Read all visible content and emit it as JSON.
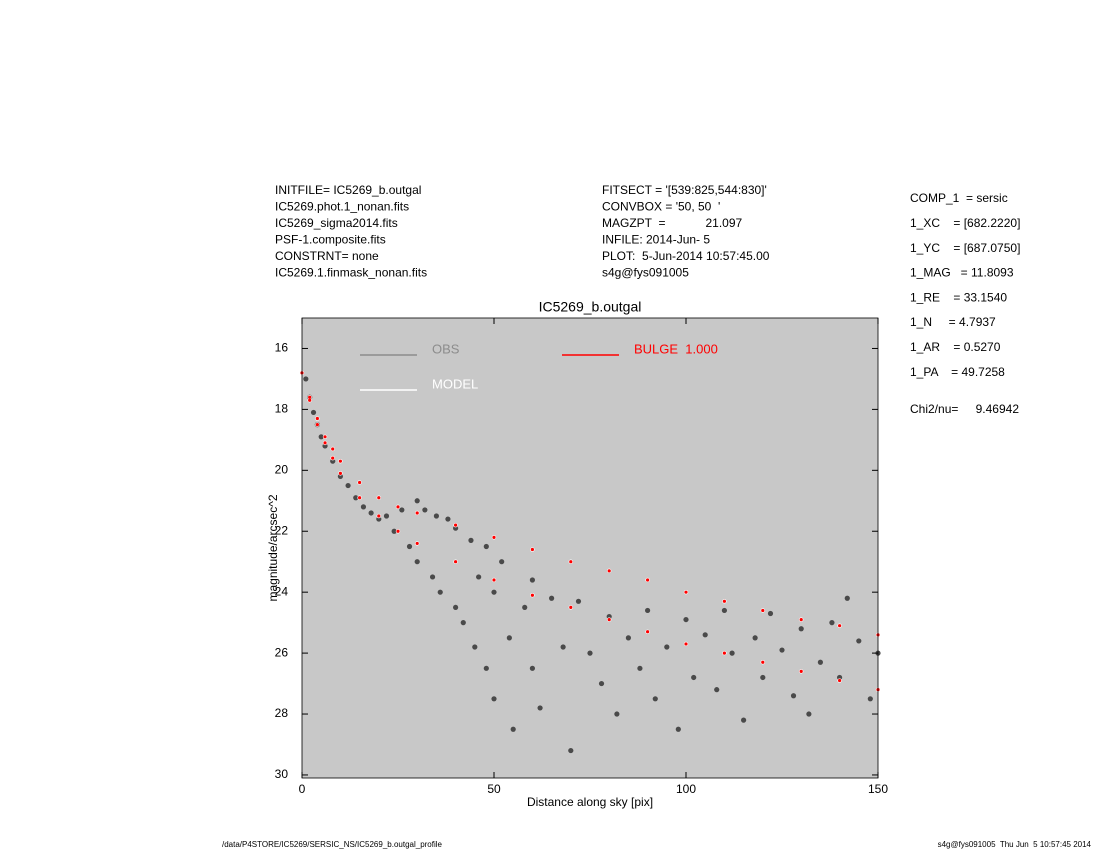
{
  "header": {
    "left": [
      "INITFILE= IC5269_b.outgal",
      "IC5269.phot.1_nonan.fits",
      "IC5269_sigma2014.fits",
      "PSF-1.composite.fits",
      "CONSTRNT= none",
      "IC5269.1.finmask_nonan.fits"
    ],
    "center": [
      "FITSECT = '[539:825,544:830]'",
      "CONVBOX = '50, 50  '",
      "MAGZPT  =            21.097",
      "INFILE: 2014-Jun- 5",
      "PLOT:  5-Jun-2014 10:57:45.00",
      "s4g@fys091005"
    ],
    "params": [
      "COMP_1  = sersic",
      "1_XC    = [682.2220]",
      "1_YC    = [687.0750]",
      "1_MAG   = 11.8093",
      "1_RE    = 33.1540",
      "1_N     = 4.7937",
      "1_AR    = 0.5270",
      "1_PA    = 49.7258"
    ],
    "chi2_label": "Chi2/nu=",
    "chi2_value": "9.46942"
  },
  "chart_data": {
    "type": "scatter",
    "title": "IC5269_b.outgal",
    "x_label": "Distance along sky [pix]",
    "y_label": "magnitude/arcsec^2",
    "xlim": [
      0,
      150
    ],
    "ylim": [
      15,
      30.1
    ],
    "y_inverted": true,
    "xticks": [
      0,
      50,
      100,
      150
    ],
    "yticks": [
      16,
      18,
      20,
      22,
      24,
      26,
      28,
      30
    ],
    "background": "#c8c8c8",
    "series": [
      {
        "name": "OBS",
        "color": "#8c8c8c",
        "marker_color": "#4a4a4a",
        "x": [
          1,
          2,
          3,
          4,
          5,
          6,
          8,
          10,
          12,
          14,
          16,
          18,
          20,
          22,
          24,
          26,
          28,
          30,
          30,
          32,
          34,
          35,
          36,
          38,
          40,
          40,
          42,
          44,
          45,
          46,
          48,
          48,
          50,
          50,
          52,
          54,
          55,
          58,
          60,
          60,
          62,
          65,
          68,
          70,
          72,
          75,
          78,
          80,
          82,
          85,
          88,
          90,
          92,
          95,
          98,
          100,
          102,
          105,
          108,
          110,
          112,
          115,
          118,
          120,
          122,
          125,
          128,
          130,
          132,
          135,
          138,
          140,
          142,
          145,
          148,
          150
        ],
        "values": [
          17.0,
          17.6,
          18.1,
          18.5,
          18.9,
          19.2,
          19.7,
          20.2,
          20.5,
          20.9,
          21.2,
          21.4,
          21.6,
          21.5,
          22.0,
          21.3,
          22.5,
          21.0,
          23.0,
          21.3,
          23.5,
          21.5,
          24.0,
          21.6,
          21.9,
          24.5,
          25.0,
          22.3,
          25.8,
          23.5,
          22.5,
          26.5,
          24.0,
          27.5,
          23.0,
          25.5,
          28.5,
          24.5,
          23.6,
          26.5,
          27.8,
          24.2,
          25.8,
          29.2,
          24.3,
          26.0,
          27.0,
          24.8,
          28.0,
          25.5,
          26.5,
          24.6,
          27.5,
          25.8,
          28.5,
          24.9,
          26.8,
          25.4,
          27.2,
          24.6,
          26.0,
          28.2,
          25.5,
          26.8,
          24.7,
          25.9,
          27.4,
          25.2,
          28.0,
          26.3,
          25.0,
          26.8,
          24.2,
          25.6,
          27.5,
          26.0
        ]
      },
      {
        "name": "MODEL",
        "color": "#ffffff",
        "marker_color": "#ffffff",
        "x": [
          0,
          2,
          4,
          6,
          8,
          10,
          15,
          20,
          25,
          30,
          40,
          50,
          60,
          70,
          80,
          90,
          100,
          110,
          120,
          130,
          140,
          150,
          2,
          4,
          6,
          8,
          10,
          15,
          20,
          25,
          30,
          40,
          50,
          60,
          70,
          80,
          90,
          100,
          110,
          120,
          130,
          140,
          150
        ],
        "values": [
          16.8,
          17.6,
          18.3,
          18.9,
          19.3,
          19.7,
          20.4,
          20.9,
          21.2,
          21.4,
          21.8,
          22.2,
          22.6,
          23.0,
          23.3,
          23.6,
          24.0,
          24.3,
          24.6,
          24.9,
          25.1,
          25.4,
          17.7,
          18.5,
          19.1,
          19.6,
          20.1,
          20.9,
          21.5,
          22.0,
          22.4,
          23.0,
          23.6,
          24.1,
          24.5,
          24.9,
          25.3,
          25.7,
          26.0,
          26.3,
          26.6,
          26.9,
          27.2
        ]
      },
      {
        "name": "BULGE  1.000",
        "color": "#ff0000",
        "marker_color": "#ff0000",
        "x": [
          0,
          2,
          4,
          6,
          8,
          10,
          15,
          20,
          25,
          30,
          40,
          50,
          60,
          70,
          80,
          90,
          100,
          110,
          120,
          130,
          140,
          150,
          2,
          4,
          6,
          8,
          10,
          15,
          20,
          25,
          30,
          40,
          50,
          60,
          70,
          80,
          90,
          100,
          110,
          120,
          130,
          140,
          150
        ],
        "values": [
          16.8,
          17.6,
          18.3,
          18.9,
          19.3,
          19.7,
          20.4,
          20.9,
          21.2,
          21.4,
          21.8,
          22.2,
          22.6,
          23.0,
          23.3,
          23.6,
          24.0,
          24.3,
          24.6,
          24.9,
          25.1,
          25.4,
          17.7,
          18.5,
          19.1,
          19.6,
          20.1,
          20.9,
          21.5,
          22.0,
          22.4,
          23.0,
          23.6,
          24.1,
          24.5,
          24.9,
          25.3,
          25.7,
          26.0,
          26.3,
          26.6,
          26.9,
          27.2
        ]
      }
    ]
  },
  "footer": {
    "left": "/data/P4STORE/IC5269/SERSIC_NS/IC5269_b.outgal_profile",
    "right": "s4g@fys091005  Thu Jun  5 10:57:45 2014"
  }
}
